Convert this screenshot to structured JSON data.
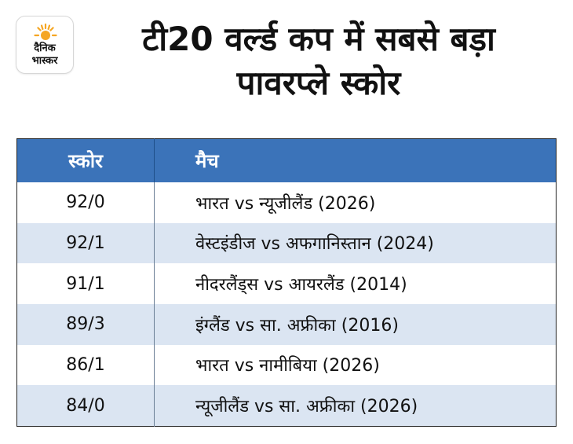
{
  "brand": {
    "logo_line1": "दैनिक",
    "logo_line2": "भास्कर",
    "logo_color": "#f5a623",
    "icon": "sun-icon"
  },
  "title": {
    "line1": "टी20 वर्ल्ड कप में सबसे बड़ा",
    "line2": "पावरप्ले स्कोर"
  },
  "table": {
    "header_color": "#3b73b9",
    "stripe_color": "#dbe5f2",
    "columns": [
      "स्कोर",
      "मैच"
    ],
    "rows": [
      {
        "score": "92/0",
        "match": "भारत vs न्यूजीलैंड (2026)"
      },
      {
        "score": "92/1",
        "match": "वेस्टइंडीज vs अफगानिस्तान (2024)"
      },
      {
        "score": "91/1",
        "match": "नीदरलैंड्स vs आयरलैंड (2014)"
      },
      {
        "score": "89/3",
        "match": "इंग्लैंड vs सा. अफ्रीका (2016)"
      },
      {
        "score": "86/1",
        "match": "भारत vs नामीबिया (2026)"
      },
      {
        "score": "84/0",
        "match": "न्यूजीलैंड vs सा. अफ्रीका (2026)"
      }
    ]
  }
}
